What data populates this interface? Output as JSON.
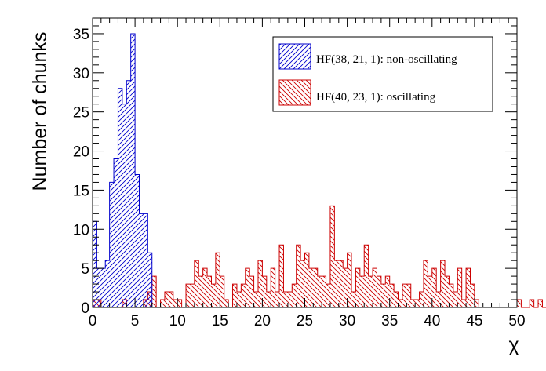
{
  "chart_data": {
    "type": "bar",
    "xlabel": "χ",
    "ylabel": "Number of chunks",
    "xlim": [
      0,
      50
    ],
    "ylim": [
      0,
      37
    ],
    "xticks": [
      0,
      5,
      10,
      15,
      20,
      25,
      30,
      35,
      40,
      45,
      50
    ],
    "yticks": [
      0,
      5,
      10,
      15,
      20,
      25,
      30,
      35
    ],
    "bin_width": 0.5,
    "grid": false,
    "legend_position": "top-right",
    "series": [
      {
        "name": "HF(38, 21, 1): non-oscillating",
        "color": "#0000cc",
        "hatch": "forward-diagonal",
        "bin_start": 0,
        "values": [
          11,
          5,
          5,
          6,
          16,
          19,
          28,
          26,
          29,
          35,
          17,
          12,
          12,
          7
        ]
      },
      {
        "name": "HF(40, 23, 1): oscillating",
        "color": "#cc0000",
        "hatch": "backward-diagonal",
        "bin_start": 0,
        "values": [
          1,
          1,
          0,
          0,
          0,
          0,
          0,
          1,
          0,
          0,
          0,
          0,
          1,
          2,
          4,
          0,
          1,
          2,
          2,
          1,
          1,
          0,
          3,
          3,
          6,
          4,
          5,
          4,
          3,
          7,
          4,
          1,
          0,
          3,
          2,
          3,
          5,
          4,
          2,
          6,
          4,
          2,
          5,
          2,
          8,
          2,
          2,
          3,
          8,
          6,
          7,
          5,
          5,
          4,
          4,
          3,
          13,
          6,
          6,
          5,
          7,
          2,
          5,
          4,
          8,
          4,
          5,
          4,
          3,
          4,
          3,
          2,
          1,
          3,
          3,
          1,
          1,
          2,
          6,
          4,
          5,
          2,
          6,
          4,
          3,
          2,
          5,
          1,
          5,
          3,
          1,
          0,
          0,
          0,
          0,
          0,
          0,
          0,
          0,
          0,
          1,
          0,
          0,
          1,
          0,
          1,
          0,
          0,
          0,
          0,
          0,
          0,
          0,
          0,
          0,
          0,
          0,
          0,
          0,
          0,
          0,
          0,
          0,
          0,
          0,
          0
        ]
      }
    ]
  }
}
